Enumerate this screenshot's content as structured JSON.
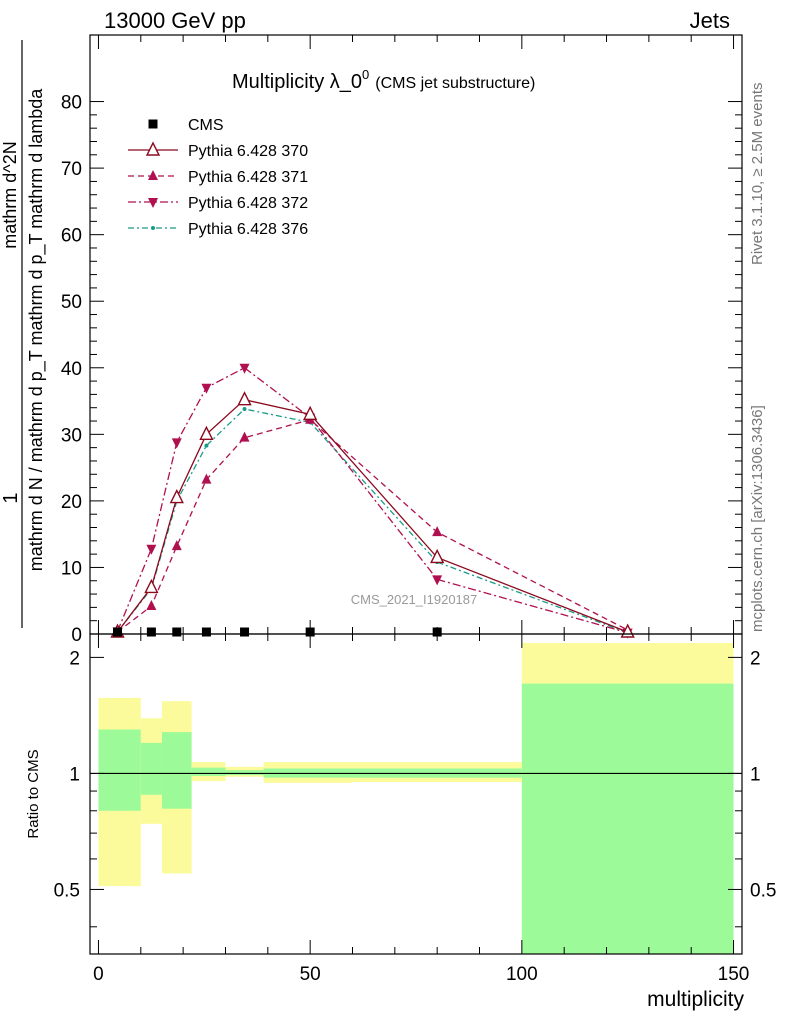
{
  "header": {
    "left": "13000 GeV pp",
    "right": "Jets"
  },
  "side_labels": {
    "top": "Rivet 3.1.10, ≥ 2.5M events",
    "bottom": "mcplots.cern.ch [arXiv:1306.3436]"
  },
  "colors": {
    "cms": "#000000",
    "p370": "#8b0a1e",
    "p371": "#b01050",
    "p372": "#b01050",
    "p376": "#1a9b8a",
    "band_inner": "#9cfb98",
    "band_outer": "#fbfb9c"
  },
  "chart_data": [
    {
      "type": "line",
      "title_main": "Multiplicity λ_0",
      "title_sup": "0",
      "title_sub": "(CMS jet substructure)",
      "watermark": "CMS_2021_I1920187",
      "ylabel_numerator": "1",
      "ylabel_denominator": "mathrm d N / mathrm d p_T mathrm d p_T mathrm d lambda",
      "ylabel_main": "mathrm d^2N",
      "xlim": [
        -2,
        152
      ],
      "ylim": [
        0,
        90
      ],
      "yticks": [
        "0",
        "10",
        "20",
        "30",
        "40",
        "50",
        "60",
        "70",
        "80"
      ],
      "legend": [
        {
          "key": "cms",
          "label": "CMS"
        },
        {
          "key": "p370",
          "label": "Pythia 6.428 370"
        },
        {
          "key": "p371",
          "label": "Pythia 6.428 371"
        },
        {
          "key": "p372",
          "label": "Pythia 6.428 372"
        },
        {
          "key": "p376",
          "label": "Pythia 6.428 376"
        }
      ],
      "series": [
        {
          "name": "CMS",
          "key": "cms",
          "x": [
            4.5,
            12.5,
            18.5,
            25.5,
            34.5,
            50,
            80
          ],
          "y": [
            0.3,
            0.3,
            0.3,
            0.3,
            0.3,
            0.3,
            0.3
          ]
        },
        {
          "name": "Pythia 6.428 370",
          "key": "p370",
          "x": [
            4.5,
            12.5,
            18.5,
            25.5,
            34.5,
            50,
            80,
            125
          ],
          "y": [
            0.3,
            7.0,
            20.5,
            30.0,
            35.2,
            33.0,
            11.5,
            0.3
          ]
        },
        {
          "name": "Pythia 6.428 371",
          "key": "p371",
          "x": [
            4.5,
            12.5,
            18.5,
            25.5,
            34.5,
            50,
            80,
            125
          ],
          "y": [
            0.3,
            4.2,
            13.2,
            23.2,
            29.5,
            32.2,
            15.3,
            0.6
          ]
        },
        {
          "name": "Pythia 6.428 372",
          "key": "p372",
          "x": [
            4.5,
            12.5,
            18.5,
            25.5,
            34.5,
            50,
            80,
            125
          ],
          "y": [
            0.4,
            12.8,
            28.8,
            37.0,
            40.0,
            32.5,
            8.2,
            0.2
          ]
        },
        {
          "name": "Pythia 6.428 376",
          "key": "p376",
          "x": [
            4.5,
            12.5,
            18.5,
            25.5,
            34.5,
            50,
            80,
            125
          ],
          "y": [
            0.3,
            6.8,
            20.0,
            28.3,
            33.8,
            31.8,
            10.8,
            0.2
          ]
        }
      ]
    },
    {
      "type": "area",
      "ylabel": "Ratio to CMS",
      "xlabel": "multiplicity",
      "xlim": [
        -2,
        152
      ],
      "ylim": [
        0.34,
        2.3
      ],
      "xticks": [
        "0",
        "50",
        "100",
        "150"
      ],
      "yticks": [
        "0.5",
        "1",
        "2"
      ],
      "reference_line": 1,
      "bins": [
        {
          "xlo": 0,
          "xhi": 10,
          "inner": [
            0.8,
            1.3
          ],
          "outer": [
            0.51,
            1.57
          ]
        },
        {
          "xlo": 10,
          "xhi": 15,
          "inner": [
            0.88,
            1.2
          ],
          "outer": [
            0.74,
            1.39
          ]
        },
        {
          "xlo": 15,
          "xhi": 22,
          "inner": [
            0.81,
            1.28
          ],
          "outer": [
            0.55,
            1.54
          ]
        },
        {
          "xlo": 22,
          "xhi": 30,
          "inner": [
            0.985,
            1.035
          ],
          "outer": [
            0.955,
            1.07
          ]
        },
        {
          "xlo": 30,
          "xhi": 39,
          "inner": [
            0.99,
            1.02
          ],
          "outer": [
            0.98,
            1.04
          ]
        },
        {
          "xlo": 39,
          "xhi": 60,
          "inner": [
            0.975,
            1.03
          ],
          "outer": [
            0.945,
            1.07
          ]
        },
        {
          "xlo": 60,
          "xhi": 100,
          "inner": [
            0.975,
            1.03
          ],
          "outer": [
            0.95,
            1.07
          ]
        },
        {
          "xlo": 100,
          "xhi": 150,
          "inner": [
            0.34,
            1.71
          ],
          "outer": [
            0.34,
            2.18
          ]
        }
      ]
    }
  ]
}
